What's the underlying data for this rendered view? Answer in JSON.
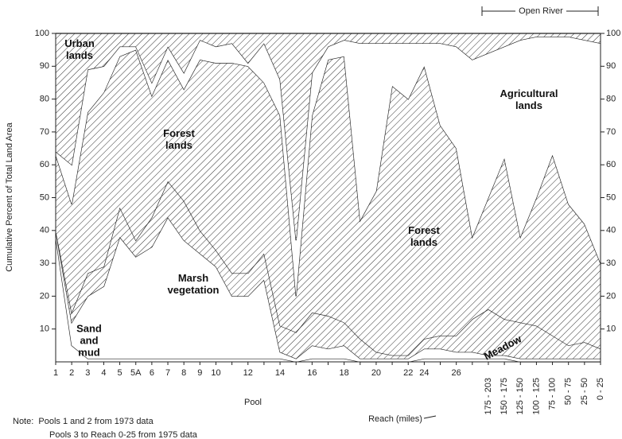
{
  "chart_data": {
    "type": "area",
    "stacked": true,
    "y_axis_label": "Cumulative Percent of Total Land Area",
    "x_axis_label": "Pool",
    "reach_label": "Reach (miles)",
    "open_river_label": "Open River",
    "notes": [
      "Note:  Pools 1 and 2 from 1973 data",
      "Pools 3 to Reach 0-25 from 1975 data"
    ],
    "categories": [
      "1",
      "2",
      "3",
      "4",
      "5",
      "5A",
      "6",
      "7",
      "8",
      "9",
      "10",
      null,
      "12",
      null,
      "14",
      null,
      "16",
      null,
      "18",
      null,
      "20",
      null,
      "22",
      "24",
      null,
      "26",
      null,
      "175 - 203",
      "150 - 175",
      "125 - 150",
      "100 - 125",
      "75 - 100",
      "50 - 75",
      "25 - 50",
      "0 - 25"
    ],
    "series": [
      {
        "name": "Sand and mud",
        "color": "#222",
        "hatch": false,
        "values": [
          38,
          5,
          1,
          1,
          1,
          1,
          1,
          1,
          1,
          1,
          1,
          1,
          1,
          1,
          1,
          0,
          1,
          1,
          1,
          0,
          0,
          0,
          0,
          1,
          1,
          1,
          1,
          1,
          1,
          0,
          0,
          0,
          0,
          0,
          0
        ]
      },
      {
        "name": "Marsh vegetation",
        "color": "#222",
        "hatch": false,
        "values": [
          2,
          7,
          19,
          22,
          37,
          31,
          34,
          43,
          36,
          32,
          28,
          19,
          19,
          24,
          2,
          1,
          4,
          3,
          4,
          1,
          1,
          1,
          1,
          3,
          3,
          2,
          2,
          1,
          1,
          1,
          1,
          1,
          1,
          1,
          1
        ]
      },
      {
        "name": "Meadow",
        "color": "#222",
        "hatch": true,
        "values": [
          0,
          3,
          7,
          6,
          9,
          5,
          9,
          11,
          12,
          7,
          5,
          7,
          7,
          8,
          8,
          8,
          10,
          10,
          7,
          6,
          2,
          1,
          1,
          3,
          4,
          5,
          10,
          14,
          11,
          11,
          10,
          7,
          4,
          5,
          3
        ]
      },
      {
        "name": "Forest lands",
        "color": "#222",
        "hatch": true,
        "values": [
          23,
          33,
          49,
          53,
          46,
          58,
          37,
          37,
          34,
          52,
          57,
          64,
          63,
          52,
          64,
          11,
          60,
          78,
          81,
          36,
          49,
          82,
          78,
          83,
          64,
          57,
          25,
          34,
          49,
          26,
          39,
          55,
          43,
          36,
          26
        ]
      },
      {
        "name": "Agricultural lands",
        "color": "#222",
        "hatch": false,
        "values": [
          1,
          12,
          13,
          8,
          3,
          1,
          4,
          4,
          5,
          6,
          5,
          6,
          1,
          12,
          11,
          17,
          13,
          4,
          5,
          54,
          45,
          13,
          17,
          7,
          25,
          31,
          54,
          44,
          34,
          60,
          49,
          36,
          51,
          56,
          67
        ]
      },
      {
        "name": "Urban lands",
        "color": "#222",
        "hatch": true,
        "values": [
          36,
          40,
          11,
          10,
          4,
          4,
          15,
          4,
          12,
          2,
          4,
          3,
          9,
          3,
          14,
          63,
          12,
          4,
          2,
          3,
          3,
          3,
          3,
          3,
          3,
          4,
          8,
          6,
          4,
          2,
          1,
          1,
          1,
          2,
          3
        ]
      }
    ],
    "ylim": [
      0,
      100
    ],
    "yticks": [
      10,
      20,
      30,
      40,
      50,
      60,
      70,
      80,
      90,
      100
    ],
    "y2lim": [
      0,
      100
    ],
    "y2ticks": [
      10,
      20,
      30,
      40,
      50,
      60,
      70,
      80,
      90,
      100
    ]
  }
}
